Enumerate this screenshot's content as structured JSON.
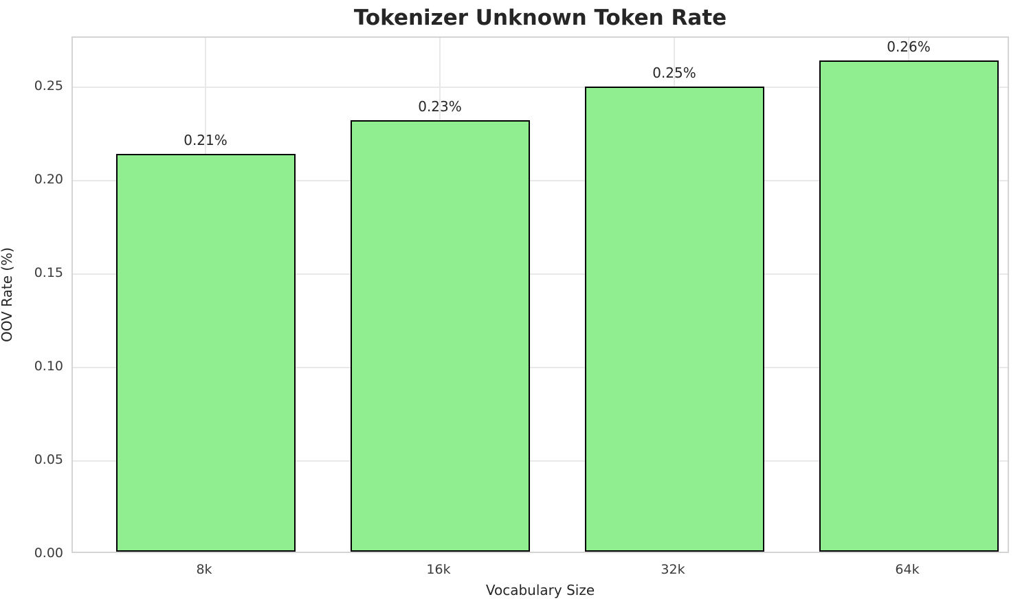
{
  "chart_data": {
    "type": "bar",
    "title": "Tokenizer Unknown Token Rate",
    "xlabel": "Vocabulary Size",
    "ylabel": "OOV Rate (%)",
    "categories": [
      "8k",
      "16k",
      "32k",
      "64k"
    ],
    "values": [
      0.213,
      0.231,
      0.249,
      0.263
    ],
    "bar_value_labels": [
      "0.21%",
      "0.23%",
      "0.25%",
      "0.26%"
    ],
    "yticks": [
      0.0,
      0.05,
      0.1,
      0.15,
      0.2,
      0.25
    ],
    "ytick_labels": [
      "0.00",
      "0.05",
      "0.10",
      "0.15",
      "0.20",
      "0.25"
    ],
    "ylim": [
      0,
      0.2765
    ],
    "grid": true,
    "legend": "none",
    "bar_fill_color": "#90EE90",
    "bar_edge_color": "#000000",
    "grid_color": "#e8e8e8",
    "spine_color": "#d4d4d4",
    "text_color": "#262626"
  }
}
